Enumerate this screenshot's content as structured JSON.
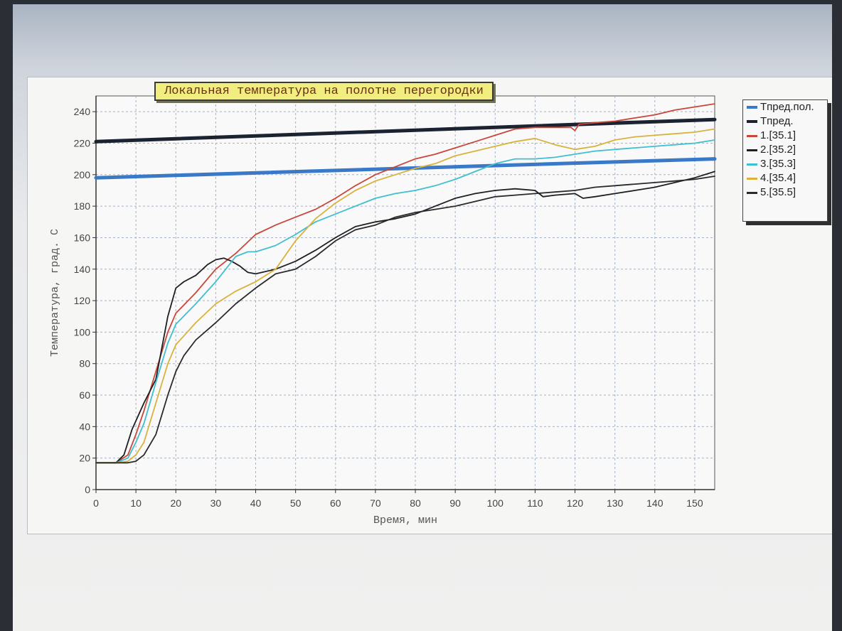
{
  "chart_data": {
    "type": "line",
    "title": "Локальная температура на полотне перегородки",
    "xlabel": "Время, мин",
    "ylabel": "Температура, град. С",
    "xlim": [
      0,
      155
    ],
    "ylim": [
      0,
      250
    ],
    "xticks": [
      0,
      10,
      20,
      30,
      40,
      50,
      60,
      70,
      80,
      90,
      100,
      110,
      120,
      130,
      140,
      150
    ],
    "yticks": [
      0,
      20,
      40,
      60,
      80,
      100,
      120,
      140,
      160,
      180,
      200,
      220,
      240
    ],
    "grid": true,
    "legend_position": "right",
    "series": [
      {
        "name": "Tпред.пол.",
        "color": "#3a78c8",
        "style": "thick",
        "x": [
          0,
          155
        ],
        "y": [
          198,
          210
        ]
      },
      {
        "name": "Tпред.",
        "color": "#1b2230",
        "style": "thick",
        "x": [
          0,
          155
        ],
        "y": [
          221,
          235
        ]
      },
      {
        "name": "1.[35.1]",
        "color": "#c8473a",
        "x": [
          0,
          5,
          8,
          10,
          12,
          15,
          18,
          20,
          25,
          30,
          35,
          40,
          45,
          50,
          55,
          60,
          65,
          70,
          75,
          80,
          85,
          90,
          95,
          100,
          105,
          110,
          115,
          119,
          120,
          121,
          125,
          130,
          135,
          140,
          145,
          150,
          155
        ],
        "y": [
          17,
          17,
          22,
          35,
          50,
          75,
          100,
          112,
          125,
          140,
          150,
          162,
          168,
          173,
          178,
          185,
          193,
          200,
          205,
          210,
          213,
          217,
          221,
          225,
          229,
          230,
          230,
          230,
          228,
          232,
          233,
          234,
          236,
          238,
          241,
          243,
          245
        ]
      },
      {
        "name": "2.[35.2]",
        "color": "#1e1f22",
        "x": [
          0,
          5,
          7,
          9,
          12,
          15,
          18,
          20,
          22,
          25,
          28,
          30,
          32,
          34,
          36,
          38,
          40,
          45,
          50,
          55,
          60,
          65,
          70,
          75,
          80,
          85,
          90,
          95,
          100,
          105,
          110,
          112,
          115,
          120,
          122,
          125,
          130,
          135,
          140,
          145,
          150,
          155
        ],
        "y": [
          17,
          17,
          22,
          38,
          55,
          70,
          110,
          128,
          132,
          136,
          143,
          146,
          147,
          145,
          142,
          138,
          137,
          140,
          145,
          152,
          160,
          167,
          170,
          172,
          175,
          180,
          185,
          188,
          190,
          191,
          190,
          186,
          187,
          188,
          185,
          186,
          188,
          190,
          192,
          195,
          198,
          202
        ]
      },
      {
        "name": "3.[35.3]",
        "color": "#3fbfcf",
        "x": [
          0,
          5,
          8,
          10,
          12,
          15,
          18,
          20,
          25,
          30,
          35,
          38,
          40,
          45,
          50,
          55,
          60,
          65,
          70,
          75,
          80,
          85,
          90,
          95,
          100,
          105,
          110,
          115,
          120,
          125,
          130,
          135,
          140,
          145,
          150,
          155
        ],
        "y": [
          17,
          17,
          20,
          30,
          42,
          68,
          93,
          105,
          118,
          132,
          148,
          151,
          151,
          155,
          162,
          170,
          175,
          180,
          185,
          188,
          190,
          193,
          197,
          202,
          207,
          210,
          210,
          211,
          213,
          215,
          216,
          217,
          218,
          219,
          220,
          222
        ]
      },
      {
        "name": "4.[35.4]",
        "color": "#d8b23c",
        "x": [
          0,
          5,
          8,
          10,
          12,
          15,
          18,
          20,
          25,
          30,
          35,
          40,
          45,
          50,
          55,
          60,
          65,
          70,
          75,
          80,
          85,
          90,
          95,
          100,
          105,
          110,
          115,
          120,
          125,
          130,
          135,
          140,
          145,
          150,
          155
        ],
        "y": [
          17,
          17,
          18,
          22,
          30,
          55,
          80,
          92,
          106,
          118,
          126,
          132,
          140,
          158,
          172,
          182,
          190,
          196,
          200,
          204,
          207,
          212,
          215,
          218,
          221,
          223,
          219,
          216,
          218,
          222,
          224,
          225,
          226,
          227,
          229
        ]
      },
      {
        "name": "5.[35.5]",
        "color": "#2a2a2a",
        "x": [
          0,
          5,
          8,
          10,
          12,
          15,
          18,
          20,
          22,
          25,
          30,
          35,
          40,
          45,
          50,
          55,
          60,
          65,
          70,
          75,
          80,
          85,
          90,
          95,
          100,
          105,
          110,
          115,
          120,
          125,
          130,
          135,
          140,
          145,
          150,
          155
        ],
        "y": [
          17,
          17,
          17,
          18,
          22,
          35,
          60,
          75,
          85,
          95,
          106,
          118,
          128,
          137,
          140,
          148,
          158,
          165,
          168,
          173,
          176,
          178,
          180,
          183,
          186,
          187,
          188,
          189,
          190,
          192,
          193,
          194,
          195,
          196,
          197,
          199
        ]
      }
    ]
  }
}
